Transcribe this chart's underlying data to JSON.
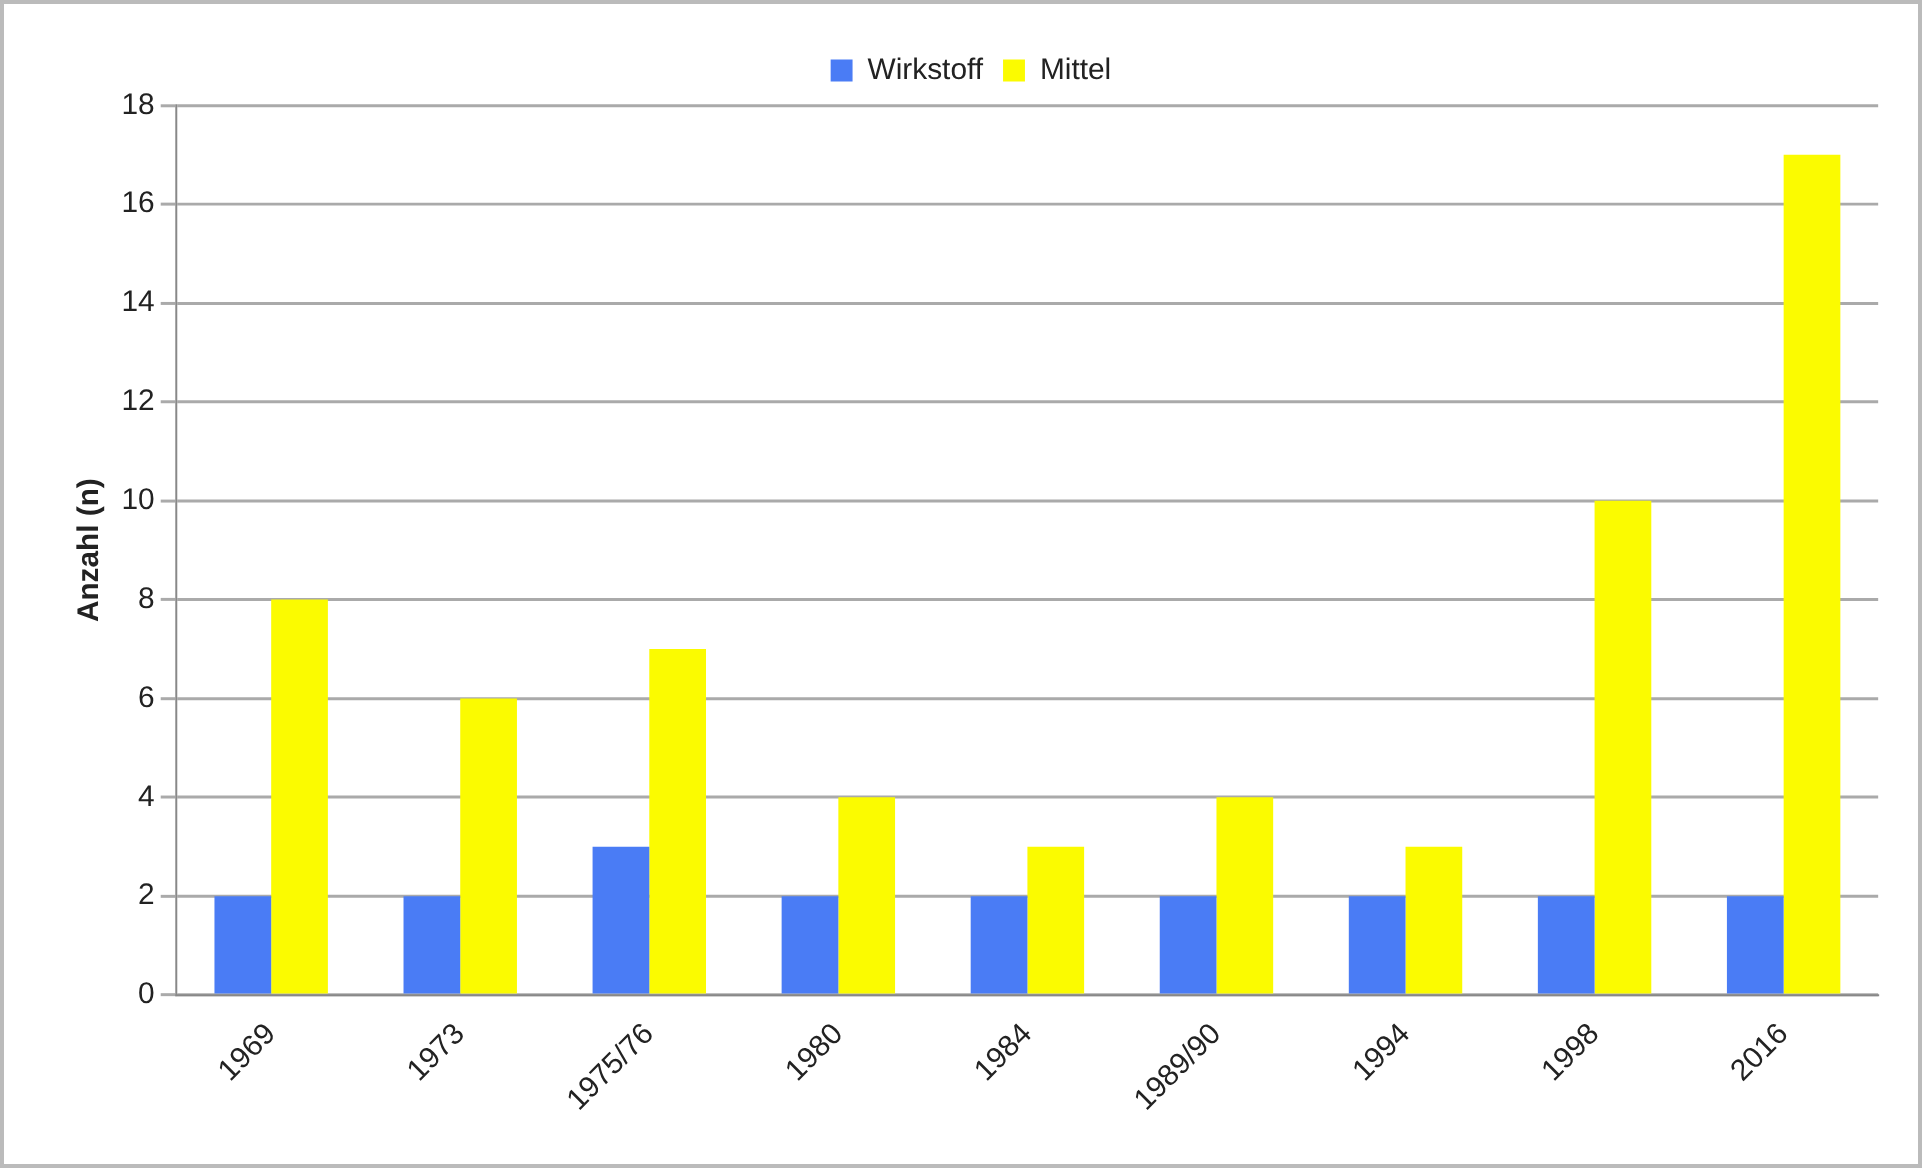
{
  "chart_data": {
    "type": "bar",
    "ylabel": "Anzahl (n)",
    "categories": [
      "1969",
      "1973",
      "1975/76",
      "1980",
      "1984",
      "1989/90",
      "1994",
      "1998",
      "2016"
    ],
    "series": [
      {
        "name": "Wirkstoff",
        "color": "#4a7cf5",
        "values": [
          2,
          2,
          3,
          2,
          2,
          2,
          2,
          2,
          2
        ]
      },
      {
        "name": "Mittel",
        "color": "#fbfb00",
        "values": [
          8,
          6,
          7,
          4,
          3,
          4,
          3,
          10,
          17
        ]
      }
    ],
    "ylim": [
      0,
      18
    ],
    "yticks": [
      0,
      2,
      4,
      6,
      8,
      10,
      12,
      14,
      16,
      18
    ],
    "grid": "y",
    "legend": "top"
  }
}
